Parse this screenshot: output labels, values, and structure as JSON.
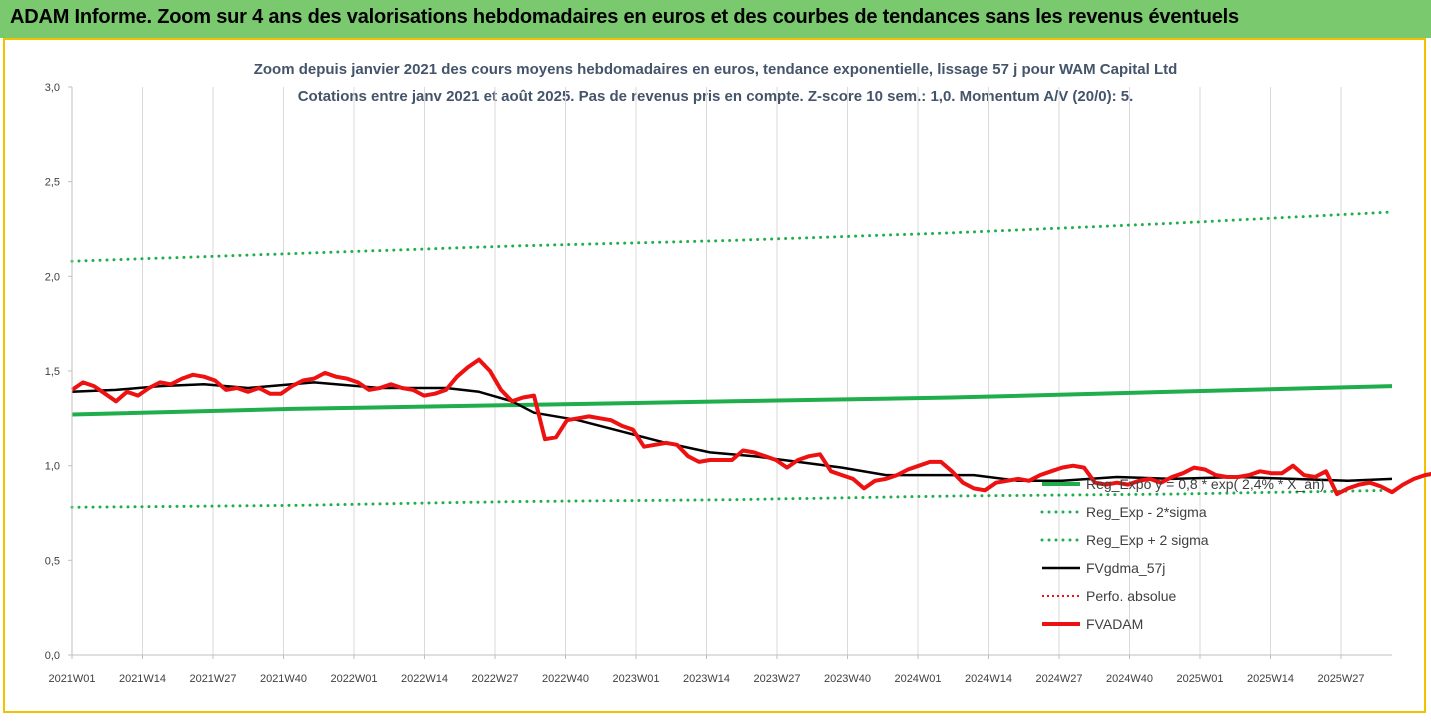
{
  "header": {
    "title": "ADAM Informe. Zoom sur 4 ans des valorisations hebdomadaires en euros et des courbes de tendances sans les revenus éventuels"
  },
  "colors": {
    "header_bg": "#7ac96f",
    "frame_border": "#f2c200",
    "trend_green": "#1fae4b",
    "smooth_black": "#000000",
    "price_red": "#ee1111",
    "title_text": "#44546a"
  },
  "chart_data": {
    "type": "line",
    "title": "Zoom depuis janvier 2021 des cours moyens hebdomadaires en euros, tendance exponentielle, lissage 57 j pour WAM Capital Ltd",
    "subtitle": "Cotations entre janv 2021 et août 2025.  Pas de revenus pris en compte. Z-score 10 sem.: 1,0. Momentum A/V (20/0): 5.",
    "xlabel": "",
    "ylabel": "",
    "ylim": [
      0,
      3
    ],
    "y_ticks": [
      "0,0",
      "0,5",
      "1,0",
      "1,5",
      "2,0",
      "2,5",
      "3,0"
    ],
    "x_ticks": [
      "2021W01",
      "2021W14",
      "2021W27",
      "2021W40",
      "2022W01",
      "2022W14",
      "2022W27",
      "2022W40",
      "2023W01",
      "2023W14",
      "2023W27",
      "2023W40",
      "2024W01",
      "2024W14",
      "2024W27",
      "2024W40",
      "2025W01",
      "2025W14",
      "2025W27"
    ],
    "x_index_range": [
      0,
      240
    ],
    "grid": "vertical",
    "legend_position": "bottom-right",
    "series": [
      {
        "name": "Reg_Expo y = 0,8 * exp( 2,4% * X_an)",
        "style": "solid",
        "color": "#1fae4b",
        "points": [
          [
            0,
            1.27
          ],
          [
            40,
            1.3
          ],
          [
            80,
            1.32
          ],
          [
            120,
            1.34
          ],
          [
            160,
            1.36
          ],
          [
            200,
            1.39
          ],
          [
            240,
            1.42
          ]
        ]
      },
      {
        "name": "Reg_Exp - 2*sigma",
        "style": "dotted",
        "color": "#1fae4b",
        "points": [
          [
            0,
            0.78
          ],
          [
            40,
            0.79
          ],
          [
            80,
            0.81
          ],
          [
            120,
            0.82
          ],
          [
            160,
            0.84
          ],
          [
            200,
            0.85
          ],
          [
            240,
            0.87
          ]
        ]
      },
      {
        "name": "Reg_Exp + 2 sigma",
        "style": "dotted",
        "color": "#1fae4b",
        "points": [
          [
            0,
            2.08
          ],
          [
            40,
            2.12
          ],
          [
            80,
            2.16
          ],
          [
            120,
            2.19
          ],
          [
            160,
            2.23
          ],
          [
            200,
            2.28
          ],
          [
            240,
            2.34
          ]
        ]
      },
      {
        "name": "FVgdma_57j",
        "style": "solid",
        "color": "#000000",
        "points": [
          [
            0,
            1.39
          ],
          [
            8,
            1.4
          ],
          [
            16,
            1.42
          ],
          [
            24,
            1.43
          ],
          [
            32,
            1.41
          ],
          [
            40,
            1.43
          ],
          [
            44,
            1.44
          ],
          [
            52,
            1.42
          ],
          [
            56,
            1.41
          ],
          [
            62,
            1.41
          ],
          [
            68,
            1.41
          ],
          [
            74,
            1.39
          ],
          [
            80,
            1.34
          ],
          [
            84,
            1.28
          ],
          [
            92,
            1.24
          ],
          [
            100,
            1.18
          ],
          [
            108,
            1.12
          ],
          [
            116,
            1.07
          ],
          [
            124,
            1.05
          ],
          [
            132,
            1.02
          ],
          [
            140,
            0.99
          ],
          [
            148,
            0.95
          ],
          [
            156,
            0.95
          ],
          [
            164,
            0.95
          ],
          [
            172,
            0.92
          ],
          [
            180,
            0.92
          ],
          [
            190,
            0.94
          ],
          [
            200,
            0.93
          ],
          [
            212,
            0.94
          ],
          [
            222,
            0.93
          ],
          [
            232,
            0.92
          ],
          [
            240,
            0.93
          ]
        ]
      },
      {
        "name": "Perfo. absolue",
        "style": "dotted",
        "color": "#ee1111",
        "points": []
      },
      {
        "name": "FVADAM",
        "style": "solid",
        "color": "#ee1111",
        "points": [
          [
            0,
            1.4
          ],
          [
            2,
            1.44
          ],
          [
            4,
            1.42
          ],
          [
            6,
            1.38
          ],
          [
            8,
            1.34
          ],
          [
            10,
            1.39
          ],
          [
            12,
            1.37
          ],
          [
            14,
            1.41
          ],
          [
            16,
            1.44
          ],
          [
            18,
            1.43
          ],
          [
            20,
            1.46
          ],
          [
            22,
            1.48
          ],
          [
            24,
            1.47
          ],
          [
            26,
            1.45
          ],
          [
            28,
            1.4
          ],
          [
            30,
            1.41
          ],
          [
            32,
            1.39
          ],
          [
            34,
            1.41
          ],
          [
            36,
            1.38
          ],
          [
            38,
            1.38
          ],
          [
            40,
            1.42
          ],
          [
            42,
            1.45
          ],
          [
            44,
            1.46
          ],
          [
            46,
            1.49
          ],
          [
            48,
            1.47
          ],
          [
            50,
            1.46
          ],
          [
            52,
            1.44
          ],
          [
            54,
            1.4
          ],
          [
            56,
            1.41
          ],
          [
            58,
            1.43
          ],
          [
            60,
            1.41
          ],
          [
            62,
            1.4
          ],
          [
            64,
            1.37
          ],
          [
            66,
            1.38
          ],
          [
            68,
            1.4
          ],
          [
            70,
            1.47
          ],
          [
            72,
            1.52
          ],
          [
            74,
            1.56
          ],
          [
            76,
            1.5
          ],
          [
            78,
            1.4
          ],
          [
            80,
            1.34
          ],
          [
            82,
            1.36
          ],
          [
            84,
            1.37
          ],
          [
            86,
            1.14
          ],
          [
            88,
            1.15
          ],
          [
            90,
            1.24
          ],
          [
            92,
            1.25
          ],
          [
            94,
            1.26
          ],
          [
            96,
            1.25
          ],
          [
            98,
            1.24
          ],
          [
            100,
            1.21
          ],
          [
            102,
            1.19
          ],
          [
            104,
            1.1
          ],
          [
            106,
            1.11
          ],
          [
            108,
            1.12
          ],
          [
            110,
            1.11
          ],
          [
            112,
            1.05
          ],
          [
            114,
            1.02
          ],
          [
            116,
            1.03
          ],
          [
            118,
            1.03
          ],
          [
            120,
            1.03
          ],
          [
            122,
            1.08
          ],
          [
            124,
            1.07
          ],
          [
            126,
            1.05
          ],
          [
            128,
            1.03
          ],
          [
            130,
            0.99
          ],
          [
            132,
            1.03
          ],
          [
            134,
            1.05
          ],
          [
            136,
            1.06
          ],
          [
            138,
            0.97
          ],
          [
            140,
            0.95
          ],
          [
            142,
            0.93
          ],
          [
            144,
            0.88
          ],
          [
            146,
            0.92
          ],
          [
            148,
            0.93
          ],
          [
            150,
            0.95
          ],
          [
            152,
            0.98
          ],
          [
            154,
            1.0
          ],
          [
            156,
            1.02
          ],
          [
            158,
            1.02
          ],
          [
            160,
            0.97
          ],
          [
            162,
            0.91
          ],
          [
            164,
            0.88
          ],
          [
            166,
            0.87
          ],
          [
            168,
            0.91
          ],
          [
            170,
            0.92
          ],
          [
            172,
            0.93
          ],
          [
            174,
            0.92
          ],
          [
            176,
            0.95
          ],
          [
            178,
            0.97
          ],
          [
            180,
            0.99
          ],
          [
            182,
            1.0
          ],
          [
            184,
            0.99
          ],
          [
            186,
            0.91
          ],
          [
            188,
            0.9
          ],
          [
            190,
            0.91
          ],
          [
            192,
            0.9
          ],
          [
            194,
            0.92
          ],
          [
            196,
            0.93
          ],
          [
            198,
            0.91
          ],
          [
            200,
            0.94
          ],
          [
            202,
            0.96
          ],
          [
            204,
            0.99
          ],
          [
            206,
            0.98
          ],
          [
            208,
            0.95
          ],
          [
            210,
            0.94
          ],
          [
            212,
            0.94
          ],
          [
            214,
            0.95
          ],
          [
            216,
            0.97
          ],
          [
            218,
            0.96
          ],
          [
            220,
            0.96
          ],
          [
            222,
            1.0
          ],
          [
            224,
            0.95
          ],
          [
            226,
            0.94
          ],
          [
            228,
            0.97
          ],
          [
            230,
            0.85
          ],
          [
            232,
            0.88
          ],
          [
            234,
            0.9
          ],
          [
            236,
            0.91
          ],
          [
            238,
            0.89
          ],
          [
            240,
            0.86
          ],
          [
            242,
            0.9
          ],
          [
            244,
            0.93
          ],
          [
            246,
            0.95
          ],
          [
            248,
            0.96
          ]
        ]
      }
    ]
  }
}
